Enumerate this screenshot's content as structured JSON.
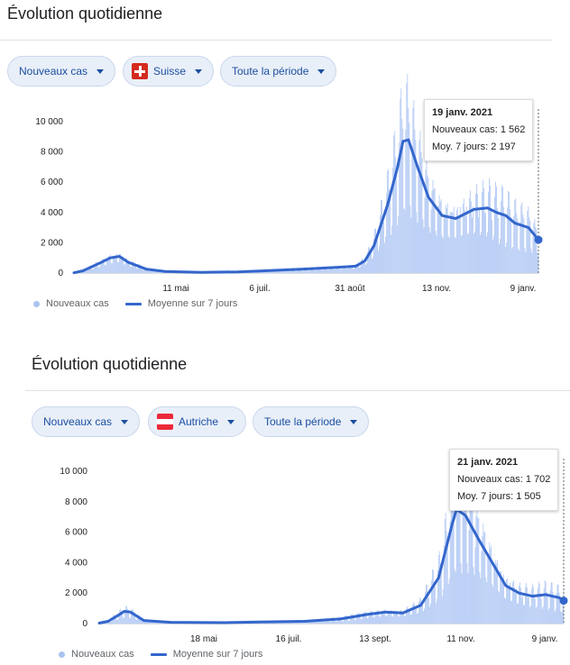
{
  "colors": {
    "bar": "#aec6f4",
    "line": "#3366cc",
    "accent": "#1a4fa0"
  },
  "panels": [
    {
      "title": "Évolution quotidienne",
      "filters": {
        "metric": "Nouveaux cas",
        "country": "Suisse",
        "period": "Toute la période"
      },
      "tooltip": {
        "date": "19 janv. 2021",
        "new_cases_label": "Nouveaux cas:",
        "new_cases": "1 562",
        "avg_label": "Moy. 7 jours:",
        "avg": "2 197"
      },
      "legend": {
        "bars": "Nouveaux cas",
        "line": "Moyenne sur 7 jours"
      },
      "y_ticks": [
        "0",
        "2 000",
        "4 000",
        "6 000",
        "8 000",
        "10 000"
      ],
      "x_ticks": [
        "11 mai",
        "6 juil.",
        "31 août",
        "13 nov.",
        "9 janv."
      ]
    },
    {
      "title": "Évolution quotidienne",
      "filters": {
        "metric": "Nouveaux cas",
        "country": "Autriche",
        "period": "Toute la période"
      },
      "tooltip": {
        "date": "21 janv. 2021",
        "new_cases_label": "Nouveaux cas:",
        "new_cases": "1 702",
        "avg_label": "Moy. 7 jours:",
        "avg": "1 505"
      },
      "legend": {
        "bars": "Nouveaux cas",
        "line": "Moyenne sur 7 jours"
      },
      "y_ticks": [
        "0",
        "2 000",
        "4 000",
        "6 000",
        "8 000",
        "10 000"
      ],
      "x_ticks": [
        "18 mai",
        "16 juil.",
        "13 sept.",
        "11 nov.",
        "9 janv."
      ]
    }
  ],
  "chart_data": [
    {
      "type": "bar",
      "series": [
        {
          "name": "Nouveaux cas",
          "type": "bar"
        },
        {
          "name": "Moyenne sur 7 jours",
          "type": "line",
          "points": [
            [
              0,
              20
            ],
            [
              10,
              150
            ],
            [
              30,
              700
            ],
            [
              40,
              1000
            ],
            [
              50,
              1100
            ],
            [
              60,
              700
            ],
            [
              80,
              250
            ],
            [
              100,
              100
            ],
            [
              140,
              50
            ],
            [
              180,
              80
            ],
            [
              210,
              150
            ],
            [
              250,
              250
            ],
            [
              290,
              380
            ],
            [
              310,
              450
            ],
            [
              320,
              800
            ],
            [
              330,
              1800
            ],
            [
              345,
              4500
            ],
            [
              356,
              7000
            ],
            [
              362,
              8700
            ],
            [
              368,
              8800
            ],
            [
              378,
              7000
            ],
            [
              390,
              5000
            ],
            [
              405,
              3800
            ],
            [
              420,
              3600
            ],
            [
              440,
              4200
            ],
            [
              455,
              4300
            ],
            [
              465,
              4000
            ],
            [
              475,
              3800
            ],
            [
              485,
              3300
            ],
            [
              500,
              3000
            ],
            [
              511,
              2197
            ]
          ]
        }
      ],
      "ylim": [
        0,
        10000
      ],
      "highlight": {
        "date": "19 janv. 2021",
        "new_cases": 1562,
        "avg_7d": 2197
      }
    },
    {
      "type": "bar",
      "series": [
        {
          "name": "Nouveaux cas",
          "type": "bar"
        },
        {
          "name": "Moyenne sur 7 jours",
          "type": "line",
          "points": [
            [
              0,
              30
            ],
            [
              10,
              150
            ],
            [
              20,
              500
            ],
            [
              28,
              800
            ],
            [
              35,
              750
            ],
            [
              50,
              200
            ],
            [
              80,
              80
            ],
            [
              140,
              60
            ],
            [
              180,
              100
            ],
            [
              230,
              150
            ],
            [
              270,
              300
            ],
            [
              300,
              600
            ],
            [
              320,
              750
            ],
            [
              340,
              700
            ],
            [
              360,
              1200
            ],
            [
              380,
              3000
            ],
            [
              395,
              6500
            ],
            [
              400,
              7500
            ],
            [
              410,
              7100
            ],
            [
              425,
              5500
            ],
            [
              440,
              4000
            ],
            [
              455,
              2500
            ],
            [
              470,
              2000
            ],
            [
              485,
              1800
            ],
            [
              500,
              1900
            ],
            [
              515,
              1700
            ],
            [
              520,
              1505
            ]
          ]
        }
      ],
      "ylim": [
        0,
        10000
      ],
      "highlight": {
        "date": "21 janv. 2021",
        "new_cases": 1702,
        "avg_7d": 1505
      }
    }
  ]
}
